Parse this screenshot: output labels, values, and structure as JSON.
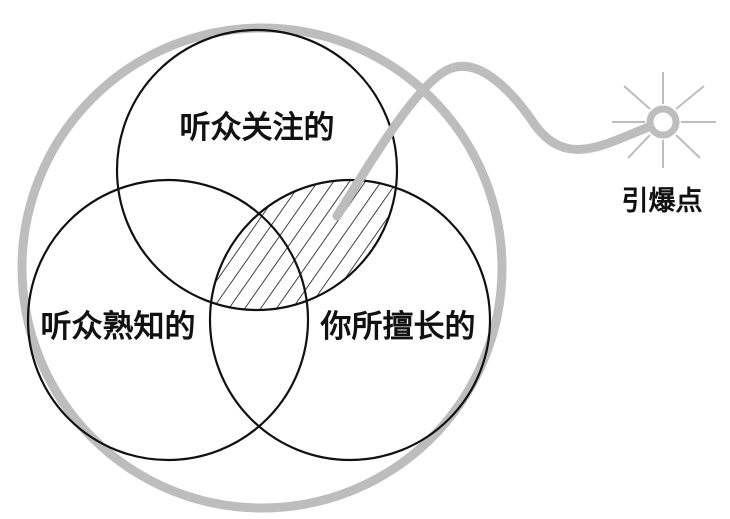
{
  "diagram": {
    "circles": {
      "audience_focus": "听众关注的",
      "audience_familiar": "听众熟知的",
      "your_expertise": "你所擅长的"
    },
    "fuse_label": "引爆点",
    "colors": {
      "outline": "#111111",
      "fuse": "#bdbdbd",
      "hatch": "#111111",
      "background": "#ffffff"
    },
    "icons": {
      "spark": "spark-icon"
    }
  }
}
